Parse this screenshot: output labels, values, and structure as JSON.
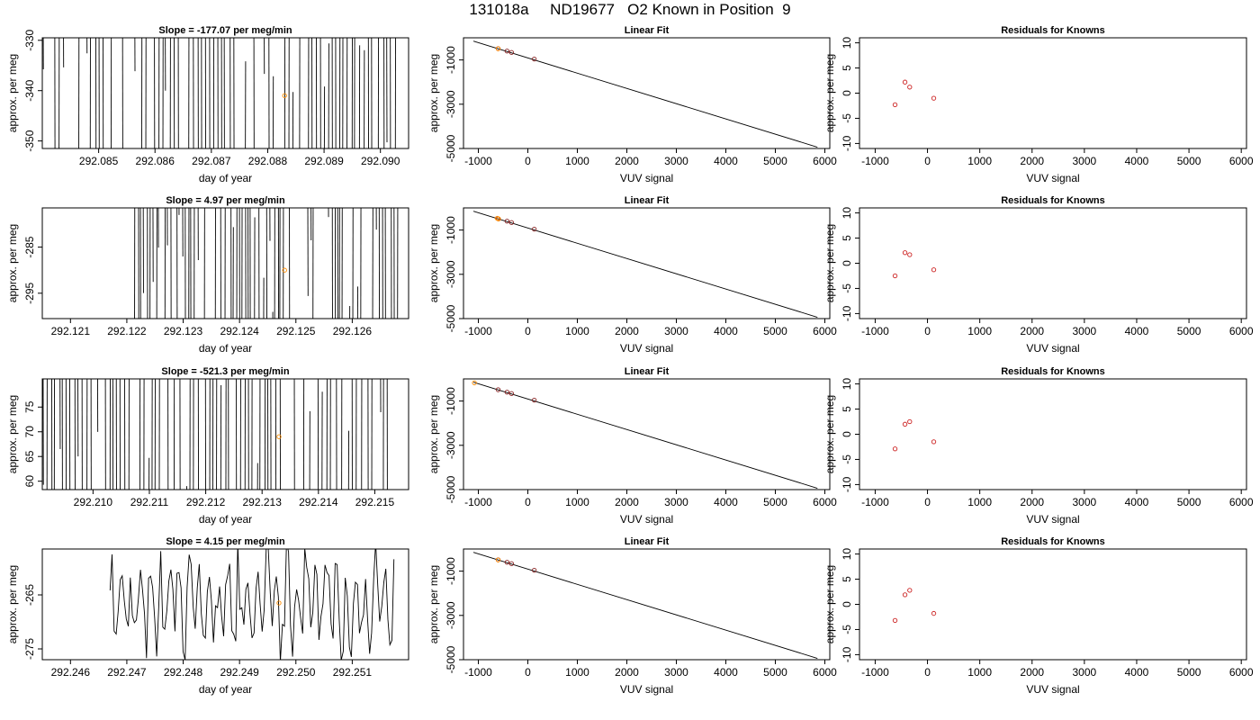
{
  "title": "131018a     ND19677   O2 Known in Position  9",
  "chart_data": [
    {
      "type": "line",
      "panel": "time-series",
      "row": 1,
      "title": "Slope =  -177.07  per meg/min",
      "xlabel": "day of year",
      "ylabel": "approx. per meg",
      "xlim": [
        292.084,
        292.0905
      ],
      "ylim": [
        -351.5,
        -329.5
      ],
      "xticks": [
        292.085,
        292.086,
        292.087,
        292.088,
        292.089,
        292.09
      ],
      "xtick_labels": [
        "292.085",
        "292.086",
        "292.087",
        "292.088",
        "292.089",
        "292.090"
      ],
      "yticks": [
        -350,
        -340,
        -330
      ],
      "ytick_labels": [
        "-350",
        "-340",
        "-330"
      ],
      "marker": {
        "x": 292.0883,
        "y": -341
      },
      "seed": 11,
      "density": "spikes"
    },
    {
      "type": "scatter",
      "panel": "linear-fit",
      "row": 1,
      "title": "Linear Fit",
      "xlabel": "VUV signal",
      "ylabel": "approx. per meg",
      "xlim": [
        -1300,
        6100
      ],
      "ylim": [
        -5000,
        0
      ],
      "xticks": [
        -1000,
        0,
        1000,
        2000,
        3000,
        4000,
        5000,
        6000
      ],
      "xtick_labels": [
        "-1000",
        "0",
        "1000",
        "2000",
        "3000",
        "4000",
        "5000",
        "6000"
      ],
      "yticks": [
        -5000,
        -3000,
        -1000
      ],
      "ytick_labels": [
        "-5000",
        "-3000",
        "-1000"
      ],
      "line": {
        "x": [
          -1100,
          5850
        ],
        "y": [
          -150,
          -4940
        ]
      },
      "points": [
        {
          "x": -600,
          "y": -490
        },
        {
          "x": -420,
          "y": -600
        },
        {
          "x": -330,
          "y": -660
        },
        {
          "x": 130,
          "y": -960
        }
      ],
      "highlight": [
        {
          "x": -600,
          "y": -495
        }
      ]
    },
    {
      "type": "scatter",
      "panel": "residuals",
      "row": 1,
      "title": "Residuals for Knowns",
      "xlabel": "VUV signal",
      "ylabel": "approx. per meg",
      "xlim": [
        -1300,
        6100
      ],
      "ylim": [
        -11,
        11
      ],
      "xticks": [
        -1000,
        0,
        1000,
        2000,
        3000,
        4000,
        5000,
        6000
      ],
      "xtick_labels": [
        "-1000",
        "0",
        "1000",
        "2000",
        "3000",
        "4000",
        "5000",
        "6000"
      ],
      "yticks": [
        -10,
        -5,
        0,
        5,
        10
      ],
      "ytick_labels": [
        "-10",
        "-5",
        "0",
        "5",
        "10"
      ],
      "points": [
        {
          "x": -620,
          "y": -2.3
        },
        {
          "x": -430,
          "y": 2.2
        },
        {
          "x": -340,
          "y": 1.2
        },
        {
          "x": 120,
          "y": -1.0
        }
      ]
    },
    {
      "type": "line",
      "panel": "time-series",
      "row": 2,
      "title": "Slope =  4.97  per meg/min",
      "xlabel": "day of year",
      "ylabel": "approx. per meg",
      "xlim": [
        292.1205,
        292.127
      ],
      "ylim": [
        -300.5,
        -276.5
      ],
      "xticks": [
        292.121,
        292.122,
        292.123,
        292.124,
        292.125,
        292.126
      ],
      "xtick_labels": [
        "292.121",
        "292.122",
        "292.123",
        "292.124",
        "292.125",
        "292.126"
      ],
      "yticks": [
        -295,
        -285
      ],
      "ytick_labels": [
        "-295",
        "-285"
      ],
      "marker": {
        "x": 292.1248,
        "y": -290
      },
      "seed": 23,
      "density": "spikes"
    },
    {
      "type": "scatter",
      "panel": "linear-fit",
      "row": 2,
      "title": "Linear Fit",
      "xlabel": "VUV signal",
      "ylabel": "approx. per meg",
      "xlim": [
        -1300,
        6100
      ],
      "ylim": [
        -5000,
        0
      ],
      "xticks": [
        -1000,
        0,
        1000,
        2000,
        3000,
        4000,
        5000,
        6000
      ],
      "xtick_labels": [
        "-1000",
        "0",
        "1000",
        "2000",
        "3000",
        "4000",
        "5000",
        "6000"
      ],
      "yticks": [
        -5000,
        -3000,
        -1000
      ],
      "ytick_labels": [
        "-5000",
        "-3000",
        "-1000"
      ],
      "line": {
        "x": [
          -1100,
          5850
        ],
        "y": [
          -150,
          -4940
        ]
      },
      "points": [
        {
          "x": -600,
          "y": -490
        },
        {
          "x": -420,
          "y": -600
        },
        {
          "x": -330,
          "y": -660
        },
        {
          "x": 130,
          "y": -960
        }
      ],
      "highlight": [
        {
          "x": -620,
          "y": -470
        },
        {
          "x": -590,
          "y": -500
        }
      ]
    },
    {
      "type": "scatter",
      "panel": "residuals",
      "row": 2,
      "title": "Residuals for Knowns",
      "xlabel": "VUV signal",
      "ylabel": "approx. per meg",
      "xlim": [
        -1300,
        6100
      ],
      "ylim": [
        -11,
        11
      ],
      "xticks": [
        -1000,
        0,
        1000,
        2000,
        3000,
        4000,
        5000,
        6000
      ],
      "xtick_labels": [
        "-1000",
        "0",
        "1000",
        "2000",
        "3000",
        "4000",
        "5000",
        "6000"
      ],
      "yticks": [
        -10,
        -5,
        0,
        5,
        10
      ],
      "ytick_labels": [
        "-10",
        "-5",
        "0",
        "5",
        "10"
      ],
      "points": [
        {
          "x": -620,
          "y": -2.5
        },
        {
          "x": -430,
          "y": 2.1
        },
        {
          "x": -340,
          "y": 1.7
        },
        {
          "x": 120,
          "y": -1.3
        }
      ]
    },
    {
      "type": "line",
      "panel": "time-series",
      "row": 3,
      "title": "Slope =  -521.3  per meg/min",
      "xlabel": "day of year",
      "ylabel": "approx. per meg",
      "xlim": [
        292.2091,
        292.2156
      ],
      "ylim": [
        58.3,
        80.7
      ],
      "xticks": [
        292.21,
        292.211,
        292.212,
        292.213,
        292.214,
        292.215
      ],
      "xtick_labels": [
        "292.210",
        "292.211",
        "292.212",
        "292.213",
        "292.214",
        "292.215"
      ],
      "yticks": [
        60,
        65,
        70,
        75
      ],
      "ytick_labels": [
        "60",
        "65",
        "70",
        "75"
      ],
      "marker": {
        "x": 292.2133,
        "y": 69
      },
      "seed": 37,
      "density": "spikes"
    },
    {
      "type": "scatter",
      "panel": "linear-fit",
      "row": 3,
      "title": "Linear Fit",
      "xlabel": "VUV signal",
      "ylabel": "approx. per meg",
      "xlim": [
        -1300,
        6100
      ],
      "ylim": [
        -5000,
        0
      ],
      "xticks": [
        -1000,
        0,
        1000,
        2000,
        3000,
        4000,
        5000,
        6000
      ],
      "xtick_labels": [
        "-1000",
        "0",
        "1000",
        "2000",
        "3000",
        "4000",
        "5000",
        "6000"
      ],
      "yticks": [
        -5000,
        -3000,
        -1000
      ],
      "ytick_labels": [
        "-5000",
        "-3000",
        "-1000"
      ],
      "line": {
        "x": [
          -1100,
          5850
        ],
        "y": [
          -150,
          -4940
        ]
      },
      "points": [
        {
          "x": -600,
          "y": -490
        },
        {
          "x": -420,
          "y": -600
        },
        {
          "x": -330,
          "y": -660
        },
        {
          "x": 130,
          "y": -960
        }
      ],
      "highlight": [
        {
          "x": -1080,
          "y": -180
        }
      ]
    },
    {
      "type": "scatter",
      "panel": "residuals",
      "row": 3,
      "title": "Residuals for Knowns",
      "xlabel": "VUV signal",
      "ylabel": "approx. per meg",
      "xlim": [
        -1300,
        6100
      ],
      "ylim": [
        -11,
        11
      ],
      "xticks": [
        -1000,
        0,
        1000,
        2000,
        3000,
        4000,
        5000,
        6000
      ],
      "xtick_labels": [
        "-1000",
        "0",
        "1000",
        "2000",
        "3000",
        "4000",
        "5000",
        "6000"
      ],
      "yticks": [
        -10,
        -5,
        0,
        5,
        10
      ],
      "ytick_labels": [
        "-10",
        "-5",
        "0",
        "5",
        "10"
      ],
      "points": [
        {
          "x": -620,
          "y": -2.9
        },
        {
          "x": -430,
          "y": 2.0
        },
        {
          "x": -340,
          "y": 2.5
        },
        {
          "x": 120,
          "y": -1.5
        }
      ]
    },
    {
      "type": "line",
      "panel": "time-series",
      "row": 4,
      "title": "Slope =  4.15  per meg/min",
      "xlabel": "day of year",
      "ylabel": "approx. per meg",
      "xlim": [
        292.2455,
        292.252
      ],
      "ylim": [
        -277,
        -256.5
      ],
      "xticks": [
        292.246,
        292.247,
        292.248,
        292.249,
        292.25,
        292.251
      ],
      "xtick_labels": [
        "292.246",
        "292.247",
        "292.248",
        "292.249",
        "292.250",
        "292.251"
      ],
      "yticks": [
        -275,
        -265
      ],
      "ytick_labels": [
        "-275",
        "-265"
      ],
      "marker": {
        "x": 292.2497,
        "y": -266.5
      },
      "seed": 53,
      "density": "wiggle"
    },
    {
      "type": "scatter",
      "panel": "linear-fit",
      "row": 4,
      "title": "Linear Fit",
      "xlabel": "VUV signal",
      "ylabel": "approx. per meg",
      "xlim": [
        -1300,
        6100
      ],
      "ylim": [
        -5000,
        0
      ],
      "xticks": [
        -1000,
        0,
        1000,
        2000,
        3000,
        4000,
        5000,
        6000
      ],
      "xtick_labels": [
        "-1000",
        "0",
        "1000",
        "2000",
        "3000",
        "4000",
        "5000",
        "6000"
      ],
      "yticks": [
        -5000,
        -3000,
        -1000
      ],
      "ytick_labels": [
        "-5000",
        "-3000",
        "-1000"
      ],
      "line": {
        "x": [
          -1100,
          5850
        ],
        "y": [
          -150,
          -4940
        ]
      },
      "points": [
        {
          "x": -600,
          "y": -490
        },
        {
          "x": -420,
          "y": -600
        },
        {
          "x": -330,
          "y": -660
        },
        {
          "x": 130,
          "y": -960
        }
      ],
      "highlight": [
        {
          "x": -600,
          "y": -495
        }
      ]
    },
    {
      "type": "scatter",
      "panel": "residuals",
      "row": 4,
      "title": "Residuals for Knowns",
      "xlabel": "VUV signal",
      "ylabel": "approx. per meg",
      "xlim": [
        -1300,
        6100
      ],
      "ylim": [
        -11,
        11
      ],
      "xticks": [
        -1000,
        0,
        1000,
        2000,
        3000,
        4000,
        5000,
        6000
      ],
      "xtick_labels": [
        "-1000",
        "0",
        "1000",
        "2000",
        "3000",
        "4000",
        "5000",
        "6000"
      ],
      "yticks": [
        -10,
        -5,
        0,
        5,
        10
      ],
      "ytick_labels": [
        "-10",
        "-5",
        "0",
        "5",
        "10"
      ],
      "points": [
        {
          "x": -620,
          "y": -3.2
        },
        {
          "x": -430,
          "y": 1.9
        },
        {
          "x": -340,
          "y": 2.8
        },
        {
          "x": 120,
          "y": -1.8
        }
      ]
    }
  ],
  "colors": {
    "axis": "#000000",
    "line": "#000000",
    "highlight": "#ff8c00",
    "residual": "#cc2222",
    "fitpoint": "#882222"
  }
}
